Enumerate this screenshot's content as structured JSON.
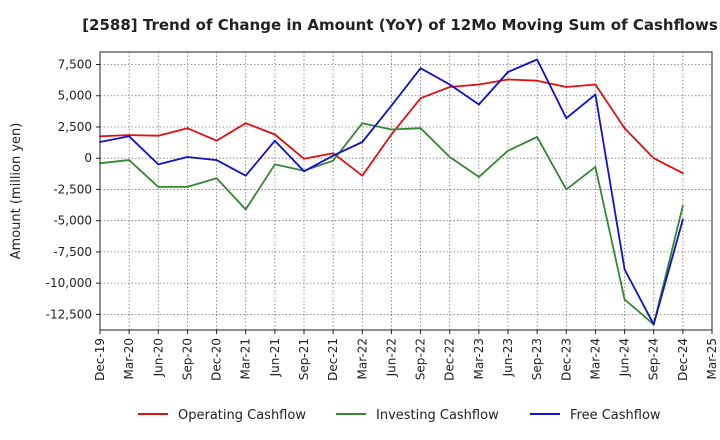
{
  "chart_data": {
    "type": "line",
    "title": "[2588]  Trend of Change in Amount (YoY) of 12Mo Moving Sum of Cashflows",
    "xlabel": "",
    "ylabel": "Amount (million yen)",
    "ylim": [
      -13750,
      8500
    ],
    "grid": true,
    "legend_position": "bottom",
    "x_tick_labels": [
      "Dec-19",
      "Mar-20",
      "Jun-20",
      "Sep-20",
      "Dec-20",
      "Mar-21",
      "Jun-21",
      "Sep-21",
      "Dec-21",
      "Mar-22",
      "Jun-22",
      "Sep-22",
      "Dec-22",
      "Mar-23",
      "Jun-23",
      "Sep-23",
      "Dec-23",
      "Mar-24",
      "Jun-24",
      "Sep-24",
      "Dec-24",
      "Mar-25"
    ],
    "y_ticks": [
      7500,
      5000,
      2500,
      0,
      -2500,
      -5000,
      -7500,
      -10000,
      -12500
    ],
    "y_tick_labels": [
      "7,500",
      "5,000",
      "2,500",
      "0",
      "-2,500",
      "-5,000",
      "-7,500",
      "-10,000",
      "-12,500"
    ],
    "categories": [
      "Dec-19",
      "Mar-20",
      "Jun-20",
      "Sep-20",
      "Dec-20",
      "Mar-21",
      "Jun-21",
      "Sep-21",
      "Dec-21",
      "Mar-22",
      "Jun-22",
      "Sep-22",
      "Dec-22",
      "Mar-23",
      "Jun-23",
      "Sep-23",
      "Dec-23",
      "Mar-24",
      "Jun-24",
      "Sep-24",
      "Dec-24"
    ],
    "series": [
      {
        "name": "Operating Cashflow",
        "color": "#dd1111",
        "values": [
          1750,
          1850,
          1800,
          2400,
          1400,
          2800,
          1900,
          -50,
          400,
          -1400,
          1900,
          4800,
          5700,
          5900,
          6300,
          6200,
          5700,
          5900,
          2400,
          0,
          -1200
        ]
      },
      {
        "name": "Investing Cashflow",
        "color": "#338833",
        "values": [
          -400,
          -150,
          -2300,
          -2300,
          -1600,
          -4100,
          -500,
          -1000,
          -200,
          2800,
          2300,
          2400,
          100,
          -1500,
          600,
          1700,
          -2500,
          -700,
          -11300,
          -13300,
          -3800
        ]
      },
      {
        "name": "Free Cashflow",
        "color": "#1111cc",
        "values": [
          1300,
          1750,
          -500,
          100,
          -150,
          -1400,
          1400,
          -1050,
          200,
          1300,
          4200,
          7200,
          5900,
          4300,
          6900,
          7900,
          3200,
          5100,
          -8900,
          -13300,
          -4900
        ]
      }
    ]
  }
}
